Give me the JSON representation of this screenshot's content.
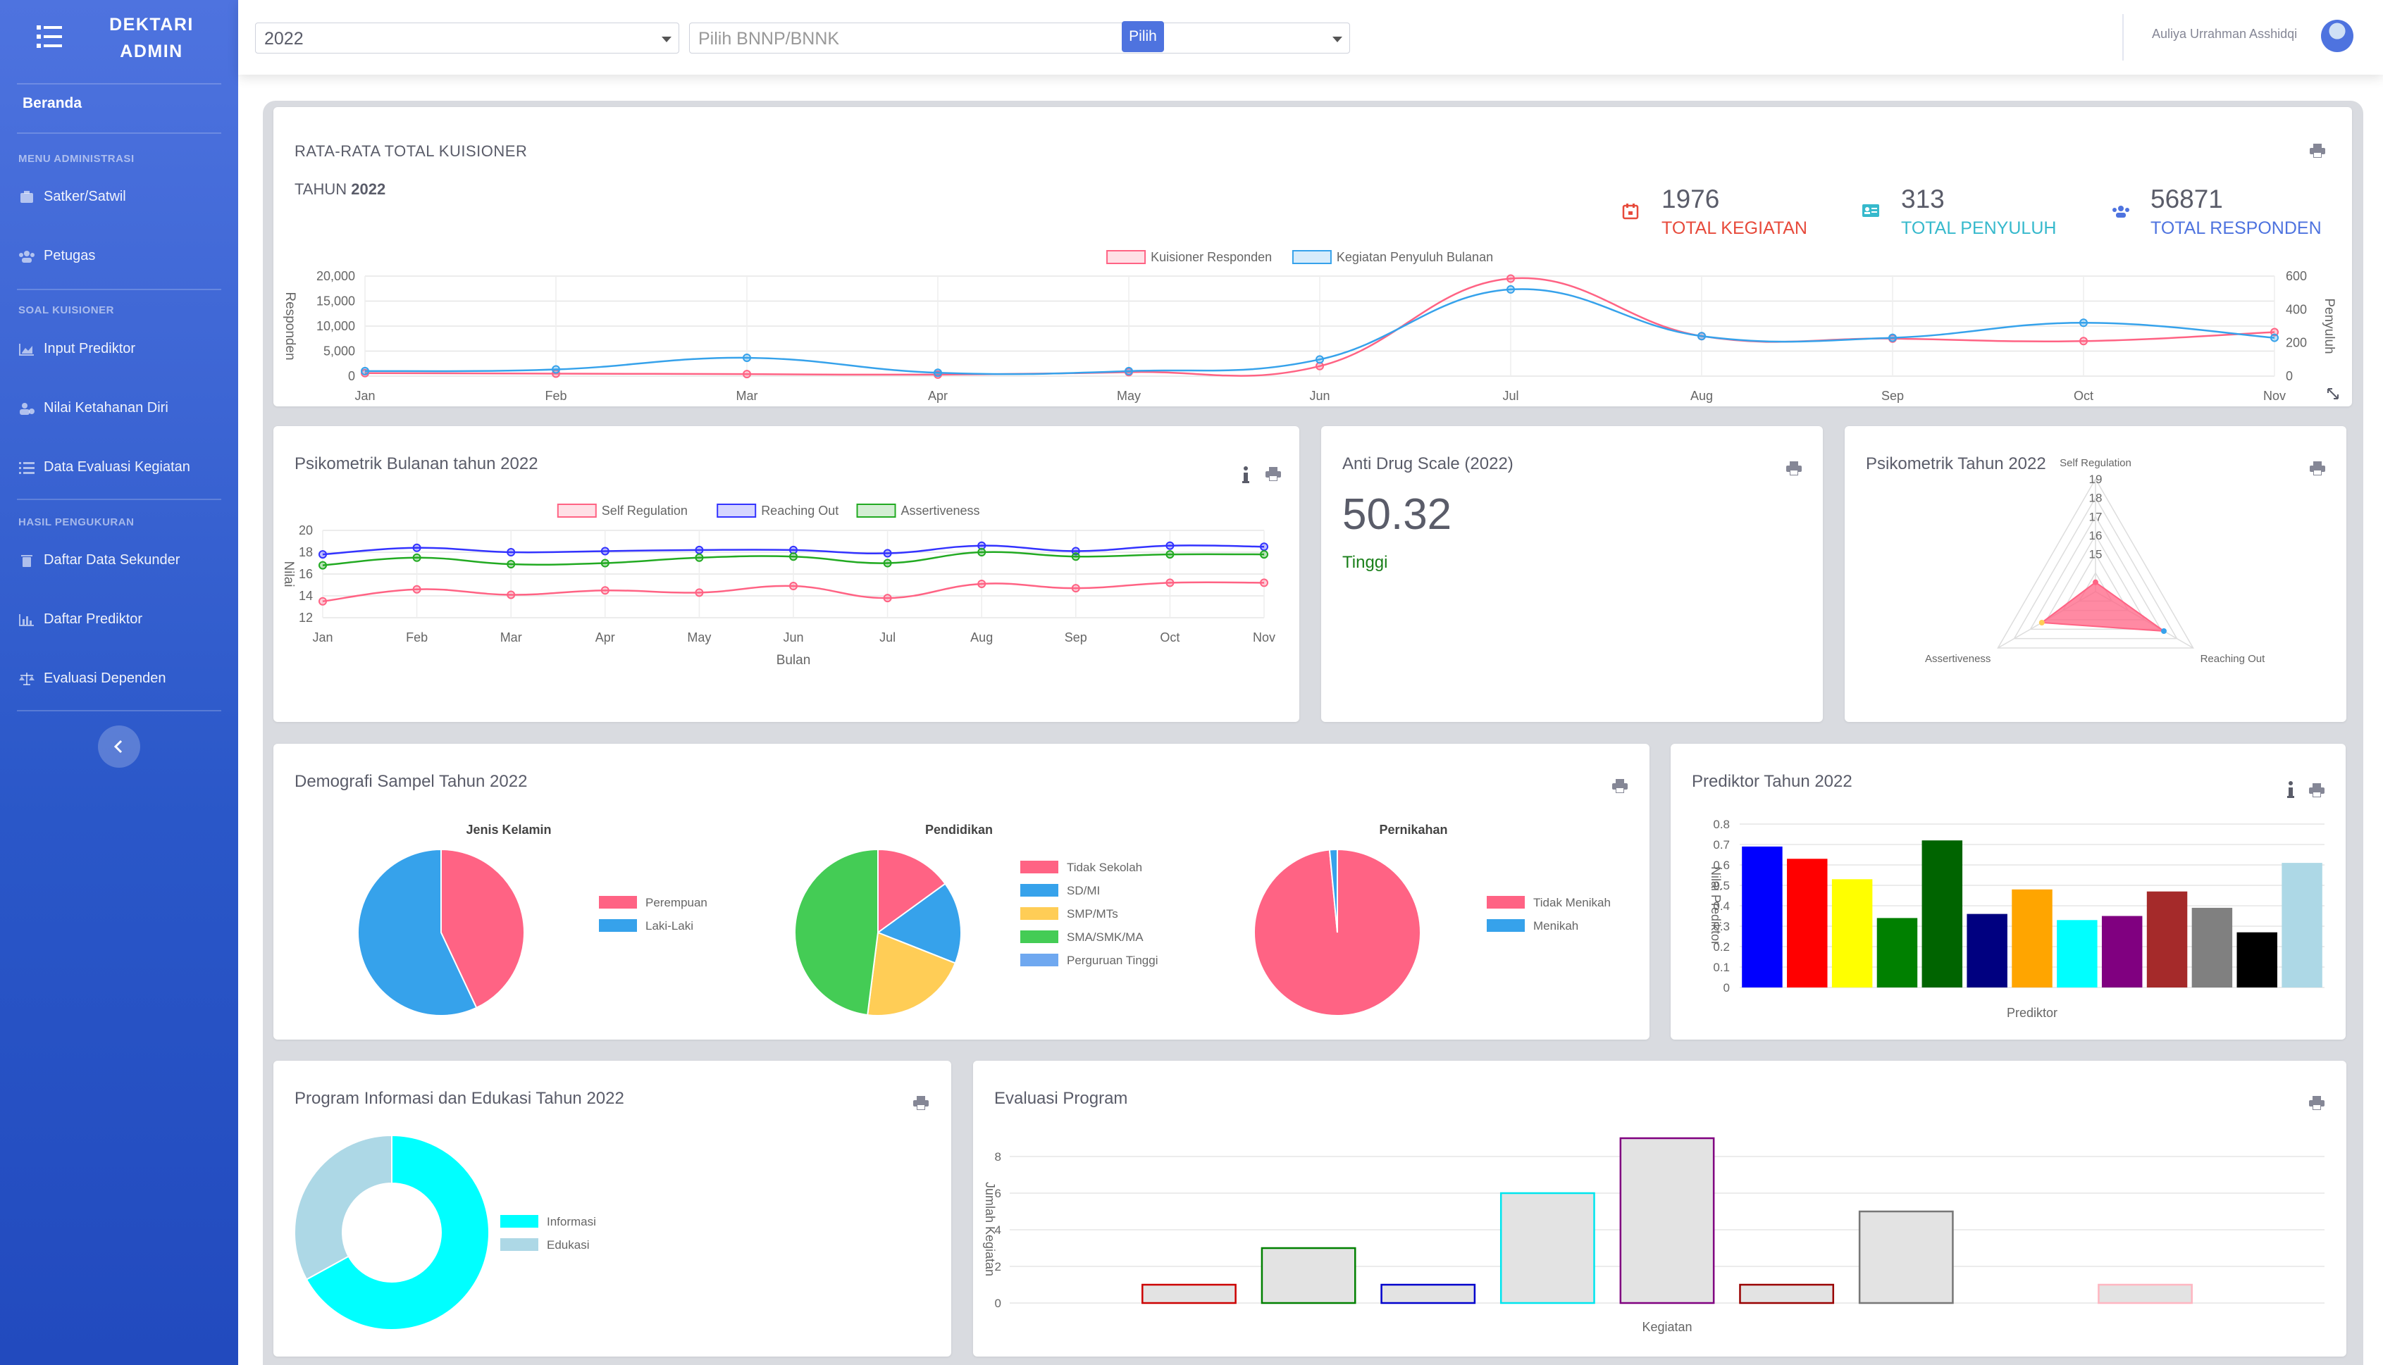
{
  "sidebar": {
    "brand": "DEKTARI ADMIN",
    "home": "Beranda",
    "headings": [
      "MENU ADMINISTRASI",
      "SOAL KUISIONER",
      "HASIL PENGUKURAN"
    ],
    "items": [
      "Satker/Satwil",
      "Petugas",
      "Input Prediktor",
      "Nilai Ketahanan Diri",
      "Data Evaluasi Kegiatan",
      "Daftar Data Sekunder",
      "Daftar Prediktor",
      "Evaluasi Dependen"
    ]
  },
  "topbar": {
    "year_value": "2022",
    "bnnp_placeholder": "Pilih BNNP/BNNK",
    "submit_label": "Pilih",
    "username": "Auliya Urrahman Asshidqi"
  },
  "summary": {
    "title": "RATA-RATA TOTAL KUISIONER",
    "year_prefix": "TAHUN",
    "year": "2022",
    "stats": [
      {
        "value": "1976",
        "label": "TOTAL KEGIATAN",
        "color": "#e74a3b",
        "icon": "calendar-icon"
      },
      {
        "value": "313",
        "label": "TOTAL PENYULUH",
        "color": "#36b9cc",
        "icon": "id-card-icon"
      },
      {
        "value": "56871",
        "label": "TOTAL RESPONDEN",
        "color": "#4e73df",
        "icon": "users-icon"
      }
    ]
  },
  "cards": {
    "psikometrik_bulanan": "Psikometrik Bulanan tahun 2022",
    "ads_title": "Anti Drug Scale (2022)",
    "ads_value": "50.32",
    "ads_category": "Tinggi",
    "psikometrik_tahun": "Psikometrik Tahun 2022",
    "demografi": "Demografi Sampel Tahun 2022",
    "prediktor": "Prediktor Tahun 2022",
    "program_info": "Program Informasi dan Edukasi Tahun 2022",
    "evaluasi": "Evaluasi Program"
  },
  "chart_data": [
    {
      "type": "line",
      "x": [
        "Jan",
        "Feb",
        "Mar",
        "Apr",
        "May",
        "Jun",
        "Jul",
        "Aug",
        "Sep",
        "Oct",
        "Nov"
      ],
      "series": [
        {
          "name": "Kuisioner Responden",
          "axis": "left",
          "color": "#ff6384",
          "values": [
            600,
            500,
            400,
            300,
            800,
            2000,
            19500,
            8000,
            7500,
            7000,
            8800
          ]
        },
        {
          "name": "Kegiatan Penyuluh Bulanan",
          "axis": "right",
          "color": "#36a2eb",
          "values": [
            30,
            40,
            110,
            20,
            30,
            100,
            520,
            240,
            230,
            320,
            230
          ]
        }
      ],
      "ylabel": "Responden",
      "ylim": [
        0,
        20000
      ],
      "yticks": [
        "20,000",
        "15,000",
        "10,000",
        "5,000",
        "0"
      ],
      "y2label": "Penyuluh",
      "y2lim": [
        0,
        600
      ],
      "y2ticks": [
        "600",
        "400",
        "200",
        "0"
      ],
      "grid": true,
      "legend": "top"
    },
    {
      "type": "line",
      "x": [
        "Jan",
        "Feb",
        "Mar",
        "Apr",
        "May",
        "Jun",
        "Jul",
        "Aug",
        "Sep",
        "Oct",
        "Nov"
      ],
      "series": [
        {
          "name": "Self Regulation",
          "color": "#ff6384",
          "values": [
            13.5,
            14.6,
            14.1,
            14.5,
            14.3,
            14.9,
            13.8,
            15.1,
            14.7,
            15.2,
            15.2
          ]
        },
        {
          "name": "Reaching Out",
          "color": "#3333ff",
          "values": [
            17.8,
            18.4,
            18.0,
            18.1,
            18.2,
            18.2,
            17.9,
            18.6,
            18.1,
            18.6,
            18.5
          ]
        },
        {
          "name": "Assertiveness",
          "color": "#22aa22",
          "values": [
            16.8,
            17.5,
            16.9,
            17.0,
            17.5,
            17.6,
            17.0,
            18.0,
            17.6,
            17.8,
            17.8
          ]
        }
      ],
      "xlabel": "Bulan",
      "ylabel": "Nilai",
      "ylim": [
        12,
        20
      ],
      "yticks": [
        "20",
        "18",
        "16",
        "14",
        "12"
      ],
      "grid": true,
      "legend": "top"
    },
    {
      "type": "radar",
      "axes": [
        "Self Regulation",
        "Reaching Out",
        "Assertiveness"
      ],
      "values": [
        14.5,
        18.2,
        17.3
      ],
      "scale_min": 14,
      "scale_ticks": [
        "19",
        "18",
        "17",
        "16",
        "15"
      ],
      "color": "#ff6384"
    },
    {
      "type": "pie",
      "title": "Jenis Kelamin",
      "labels": [
        "Perempuan",
        "Laki-Laki"
      ],
      "values": [
        43,
        57
      ],
      "colors": [
        "#ff6384",
        "#36a2eb"
      ]
    },
    {
      "type": "pie",
      "title": "Pendidikan",
      "labels": [
        "Tidak Sekolah",
        "SD/MI",
        "SMP/MTs",
        "SMA/SMK/MA",
        "Perguruan Tinggi"
      ],
      "values": [
        15,
        16,
        21,
        48,
        0
      ],
      "colors": [
        "#ff6384",
        "#36a2eb",
        "#ffcd56",
        "#44cc55",
        "#6fa8f0"
      ]
    },
    {
      "type": "pie",
      "title": "Pernikahan",
      "labels": [
        "Tidak Menikah",
        "Menikah"
      ],
      "values": [
        98.5,
        1.5
      ],
      "colors": [
        "#ff6384",
        "#36a2eb"
      ]
    },
    {
      "type": "bar",
      "xlabel": "Prediktor",
      "ylabel": "Nilai Prediktor",
      "ylim": [
        0,
        0.8
      ],
      "yticks": [
        "0.8",
        "0.7",
        "0.6",
        "0.5",
        "0.4",
        "0.3",
        "0.2",
        "0.1",
        "0"
      ],
      "values": [
        0.69,
        0.63,
        0.53,
        0.34,
        0.72,
        0.36,
        0.48,
        0.33,
        0.35,
        0.47,
        0.39,
        0.27,
        0.61
      ],
      "colors": [
        "#0000ff",
        "#ff0000",
        "#ffff00",
        "#008000",
        "#006400",
        "#000080",
        "#ffa500",
        "#00ffff",
        "#800080",
        "#a52a2a",
        "#808080",
        "#000000",
        "#add8e6"
      ]
    },
    {
      "type": "pie",
      "donut": true,
      "labels": [
        "Informasi",
        "Edukasi"
      ],
      "values": [
        67,
        33
      ],
      "colors": [
        "#00ffff",
        "#add8e6"
      ]
    },
    {
      "type": "bar",
      "xlabel": "Kegiatan",
      "ylabel": "Jumlah Kegiatan",
      "ylim": [
        0,
        9
      ],
      "yticks": [
        "8",
        "6",
        "4",
        "2",
        "0"
      ],
      "values": [
        0,
        1,
        3,
        1,
        6,
        9,
        1,
        5,
        0,
        1,
        0
      ],
      "borders": [
        "#cccccc",
        "#cc0000",
        "#008000",
        "#0000cc",
        "#00e5ee",
        "#800080",
        "#990000",
        "#777777",
        "#cccccc",
        "#ffb6c1",
        "#cccccc"
      ]
    }
  ]
}
